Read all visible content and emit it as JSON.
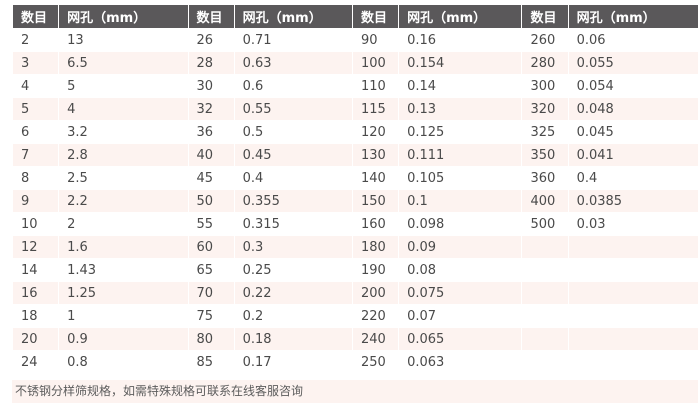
{
  "table": {
    "headers": [
      "数目",
      "网孔（mm）",
      "数目",
      "网孔（mm）",
      "数目",
      "网孔（mm）",
      "数目",
      "网孔（mm）"
    ],
    "rows": [
      [
        "2",
        "13",
        "26",
        "0.71",
        "90",
        "0.16",
        "260",
        "0.06"
      ],
      [
        "3",
        "6.5",
        "28",
        "0.63",
        "100",
        "0.154",
        "280",
        "0.055"
      ],
      [
        "4",
        "5",
        "30",
        "0.6",
        "110",
        "0.14",
        "300",
        "0.054"
      ],
      [
        "5",
        "4",
        "32",
        "0.55",
        "115",
        "0.13",
        "320",
        "0.048"
      ],
      [
        "6",
        "3.2",
        "36",
        "0.5",
        "120",
        "0.125",
        "325",
        "0.045"
      ],
      [
        "7",
        "2.8",
        "40",
        "0.45",
        "130",
        "0.111",
        "350",
        "0.041"
      ],
      [
        "8",
        "2.5",
        "45",
        "0.4",
        "140",
        "0.105",
        "360",
        "0.4"
      ],
      [
        "9",
        "2.2",
        "50",
        "0.355",
        "150",
        "0.1",
        "400",
        "0.0385"
      ],
      [
        "10",
        "2",
        "55",
        "0.315",
        "160",
        "0.098",
        "500",
        "0.03"
      ],
      [
        "12",
        "1.6",
        "60",
        "0.3",
        "180",
        "0.09",
        "",
        ""
      ],
      [
        "14",
        "1.43",
        "65",
        "0.25",
        "190",
        "0.08",
        "",
        ""
      ],
      [
        "16",
        "1.25",
        "70",
        "0.22",
        "200",
        "0.075",
        "",
        ""
      ],
      [
        "18",
        "1",
        "75",
        "0.2",
        "220",
        "0.07",
        "",
        ""
      ],
      [
        "20",
        "0.9",
        "80",
        "0.18",
        "240",
        "0.065",
        "",
        ""
      ],
      [
        "24",
        "0.8",
        "85",
        "0.17",
        "250",
        "0.063",
        "",
        ""
      ]
    ]
  },
  "footer": {
    "note": "不锈钢分样筛规格，如需特殊规格可联系在线客服咨询"
  },
  "colors": {
    "header_bg": "#5a585a",
    "stripe_bg": "#fdf3f0",
    "body_text": "#4a4a4a"
  }
}
